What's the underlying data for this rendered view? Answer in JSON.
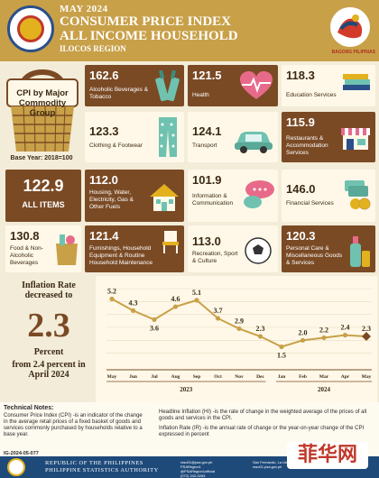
{
  "header": {
    "date": "MAY 2024",
    "title_line1": "CONSUMER PRICE INDEX",
    "title_line2": "ALL INCOME HOUSEHOLD",
    "region": "ILOCOS REGION",
    "right_logo_text": "BAGONG PILIPINAS"
  },
  "basket": {
    "label": "CPI by Major Commodity Group",
    "base_year": "Base Year: 2018=100"
  },
  "all_items": {
    "value": "122.9",
    "label": "ALL ITEMS"
  },
  "tiles": [
    {
      "value": "162.6",
      "label": "Alcoholic Beverages & Tobacco",
      "icon": "bottles-icon"
    },
    {
      "value": "121.5",
      "label": "Health",
      "icon": "heart-icon"
    },
    {
      "value": "118.3",
      "label": "Education Services",
      "icon": "books-icon"
    },
    {
      "value": "123.3",
      "label": "Clothing & Footwear",
      "icon": "pants-icon"
    },
    {
      "value": "124.1",
      "label": "Transport",
      "icon": "car-icon"
    },
    {
      "value": "115.9",
      "label": "Restaurants & Accommodation Services",
      "icon": "store-icon"
    },
    {
      "value": "112.0",
      "label": "Housing, Water, Electricity, Gas & Other Fuels",
      "icon": "house-icon"
    },
    {
      "value": "101.9",
      "label": "Information & Communication",
      "icon": "chat-icon"
    },
    {
      "value": "146.0",
      "label": "Financial Services",
      "icon": "money-icon"
    },
    {
      "value": "130.8",
      "label": "Food & Non-Alcoholic Beverages",
      "icon": "grocery-icon"
    },
    {
      "value": "121.4",
      "label": "Furnishings, Household Equipment & Routine Household Maintenance",
      "icon": "chair-icon"
    },
    {
      "value": "113.0",
      "label": "Recreation, Sport & Culture",
      "icon": "soccer-icon"
    },
    {
      "value": "120.3",
      "label": "Personal Care & Miscellaneous Goods & Services",
      "icon": "lotion-icon"
    }
  ],
  "inflation": {
    "title": "Inflation Rate decreased to",
    "value": "2.3",
    "unit": "Percent",
    "from_text": "from 2.4 percent in April 2024"
  },
  "chart_data": {
    "type": "line",
    "categories": [
      "May",
      "Jun",
      "Jul",
      "Aug",
      "Sep",
      "Oct",
      "Nov",
      "Dec",
      "Jan",
      "Feb",
      "Mar",
      "Apr",
      "May"
    ],
    "values": [
      5.2,
      4.3,
      3.6,
      4.6,
      5.1,
      3.7,
      2.9,
      2.3,
      1.5,
      2.0,
      2.2,
      2.4,
      2.3
    ],
    "year_groups": [
      {
        "label": "2023",
        "start": 0,
        "end": 7
      },
      {
        "label": "2024",
        "start": 8,
        "end": 12
      }
    ],
    "ylim": [
      0,
      6
    ],
    "grid": true,
    "line_color": "#c8a048",
    "marker_color": "#7a4a25"
  },
  "notes": {
    "title": "Technical Notes:",
    "cpi_def": "Consumer Price Index (CPI) -is an indicator of the change in the average retail prices of a fixed basket of goods and services commonly purchased by households relative to a base year.",
    "hi_def": "Headline Inflation (HI) -is the rate of change in the weighted average of the prices of all goods and services in the CPI.",
    "ir_def": "Inflation Rate (IR) -is the annual rate of change or the year-on-year change of the CPI expressed in percent"
  },
  "footer": {
    "id": "IG-2024-05-077",
    "org_line1": "REPUBLIC OF THE PHILIPPINES",
    "org_line2": "PHILIPPINE STATISTICS AUTHORITY",
    "contact_1": "rsso01@psa.gov.ph",
    "contact_2": "PSARegion1",
    "contact_3": "@PSARegion1official",
    "contact_4": "(072) 242-0283",
    "contact_5": "San Fernando, La Union 2500",
    "contact_6": "rsso01.psa.gov.ph",
    "watermark": "菲华网"
  }
}
